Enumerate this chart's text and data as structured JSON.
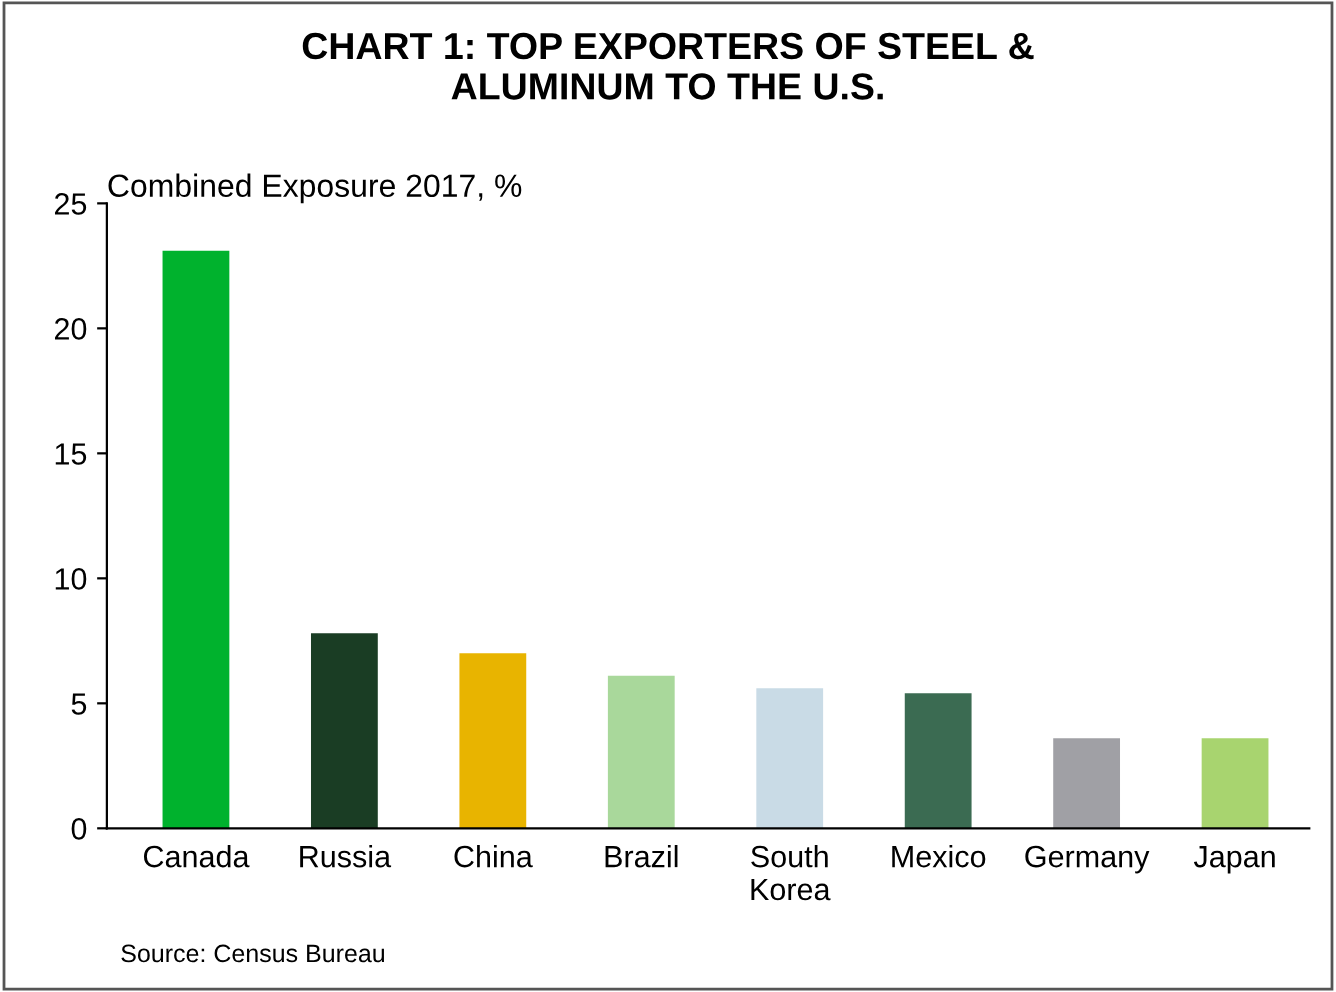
{
  "chart_data": {
    "type": "bar",
    "title": "CHART 1: TOP EXPORTERS OF STEEL &\nALUMINUM TO THE U.S.",
    "ylabel": "Combined Exposure 2017, %",
    "categories": [
      "Canada",
      "Russia",
      "China",
      "Brazil",
      "South\nKorea",
      "Mexico",
      "Germany",
      "Japan"
    ],
    "values": [
      23.1,
      7.8,
      7.0,
      6.1,
      5.6,
      5.4,
      3.6,
      3.6
    ],
    "colors": [
      "#00b22d",
      "#1a3d24",
      "#e8b400",
      "#a9d89b",
      "#c9dbe6",
      "#3b6b52",
      "#a0a0a5",
      "#a8d46f"
    ],
    "ylim": [
      0,
      25
    ],
    "yticks": [
      0,
      5,
      10,
      15,
      20,
      25
    ],
    "grid": false,
    "legend": false,
    "annotations": [
      "Source: Census Bureau"
    ]
  }
}
